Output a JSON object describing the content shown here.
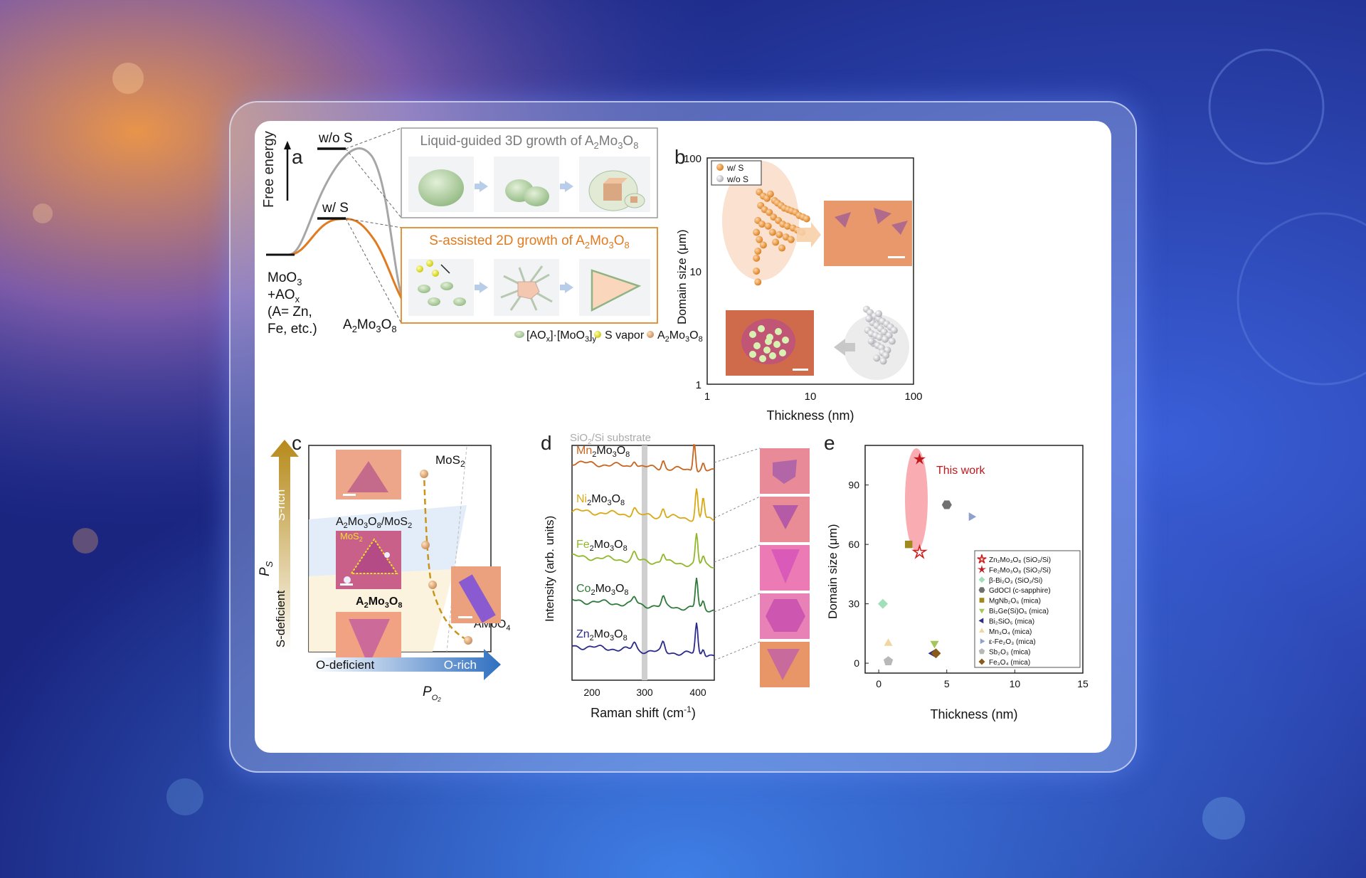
{
  "panels": {
    "a": {
      "letter": "a",
      "free_energy": "Free energy",
      "wo_s": "w/o S",
      "w_s": "w/ S",
      "reactant": {
        "line1": "MoO",
        "line1_sub": "3",
        "line2": "+AO",
        "line2_sub": "x",
        "line3": "(A= Zn,",
        "line4": "Fe, etc.)"
      },
      "product": {
        "a": "A",
        "a_sub": "2",
        "mo": "Mo",
        "mo_sub": "3",
        "o": "O",
        "o_sub": "8"
      },
      "box_top_title": "Liquid-guided 3D growth of A",
      "box_bottom_title": "S-assisted 2D growth of A",
      "legend_precursor": "[AO",
      "legend_precursor_sub1": "x",
      "legend_precursor_mid": "]·[MoO",
      "legend_precursor_sub2": "3",
      "legend_precursor_end": "]",
      "legend_precursor_sub3": "y",
      "legend_svapor": "S vapor",
      "legend_product": "A",
      "colors": {
        "orange": "#e07b20",
        "gray": "#9a9a9a",
        "green": "#a9c99a"
      }
    },
    "b": {
      "letter": "b",
      "xlabel": "Thickness (nm)",
      "ylabel": "Domain size (μm)",
      "xticks": [
        "1",
        "10",
        "100"
      ],
      "yticks": [
        "1",
        "10",
        "100"
      ],
      "legend": [
        "w/ S",
        "w/o S"
      ]
    },
    "c": {
      "letter": "c",
      "mos2": "MoS",
      "mos2_sub": "2",
      "mixed": "A",
      "mixed_rest": "Mo",
      "mos2_inset": "MoS",
      "a2mo3o8": "A",
      "amoo4": "AMoO",
      "amoo4_sub": "4",
      "s_rich": "S-rich",
      "s_deficient": "S-deficient",
      "ps": "P",
      "ps_sub": "S",
      "o_deficient": "O-deficient",
      "o_rich": "O-rich",
      "po2": "P",
      "po2_sub": "O"
    },
    "d": {
      "letter": "d",
      "substrate": "SiO",
      "substrate_rest": "/Si substrate",
      "xlabel": "Raman shift (cm",
      "xlabel_sup": "-1",
      "ylabel": "Intensity (arb. units)",
      "xticks": [
        "200",
        "300",
        "400"
      ],
      "spectra": [
        {
          "el": "Mn",
          "color": "#c8641e"
        },
        {
          "el": "Ni",
          "color": "#d9a915"
        },
        {
          "el": "Fe",
          "color": "#8fb82a"
        },
        {
          "el": "Co",
          "color": "#2f7a3a"
        },
        {
          "el": "Zn",
          "color": "#2a2a8a"
        }
      ]
    },
    "e": {
      "letter": "e",
      "this_work": "This work",
      "xlabel": "Thickness (nm)",
      "ylabel": "Domain size (μm)",
      "xticks": [
        "0",
        "5",
        "10",
        "15"
      ],
      "yticks": [
        "0",
        "30",
        "60",
        "90"
      ],
      "legend": [
        "Zn₂Mo₃O₈ (SiO₂/Si)",
        "Fe₂Mo₃O₈ (SiO₂/Si)",
        "β-Bi₂O₃ (SiO₂/Si)",
        "GdOCl (c-sapphire)",
        "MgNb₂O₆ (mica)",
        "Bi₂Ge(Si)O₅ (mica)",
        "Bi₂SiO₅ (mica)",
        "Mn₃O₄ (mica)",
        "ε-Fe₂O₃ (mica)",
        "Sb₂O₃ (mica)",
        "Fe₃O₄ (mica)"
      ]
    }
  },
  "chart_data": [
    {
      "type": "scatter",
      "panel": "b",
      "xlabel": "Thickness (nm)",
      "ylabel": "Domain size (μm)",
      "xlim": [
        1,
        100
      ],
      "ylim": [
        1,
        100
      ],
      "xscale": "log",
      "yscale": "log",
      "legend_position": "top-left",
      "series": [
        {
          "name": "w/ S",
          "color": "#e2821e",
          "x": [
            3.2,
            3.5,
            3.8,
            4.1,
            4.5,
            4.8,
            5.2,
            5.6,
            6.1,
            6.6,
            7.2,
            7.8,
            8.5,
            9.2,
            3.3,
            3.6,
            4.0,
            4.4,
            4.9,
            5.4,
            6.0,
            6.8,
            7.5,
            8.3,
            3.1,
            3.4,
            3.9,
            4.3,
            5.0,
            5.8,
            6.5,
            3.0,
            3.2,
            3.5,
            4.6,
            5.3,
            3.1,
            3.0,
            3.0,
            3.1
          ],
          "y": [
            50,
            46,
            44,
            48,
            42,
            40,
            38,
            36,
            35,
            34,
            33,
            31,
            30,
            29,
            38,
            35,
            33,
            30,
            28,
            26,
            25,
            24,
            23,
            22,
            28,
            26,
            25,
            22,
            21,
            20,
            19,
            22,
            19,
            17,
            18,
            16,
            15,
            13,
            10,
            8
          ]
        },
        {
          "name": "w/o S",
          "color": "#c0c0c8",
          "x": [
            35,
            38,
            42,
            46,
            50,
            55,
            60,
            65,
            40,
            44,
            48,
            52,
            58,
            36,
            39,
            43,
            47,
            53,
            62,
            41,
            45,
            49,
            56,
            50,
            54,
            44,
            39,
            37,
            46,
            51
          ],
          "y": [
            4.6,
            4.3,
            4.0,
            3.8,
            3.6,
            3.4,
            3.2,
            3.0,
            3.5,
            3.3,
            3.1,
            2.9,
            2.7,
            3.0,
            2.8,
            2.7,
            2.6,
            2.5,
            2.4,
            2.3,
            2.2,
            2.1,
            2.0,
            1.9,
            1.8,
            1.7,
            2.4,
            3.8,
            4.2,
            1.6
          ]
        }
      ]
    },
    {
      "type": "line",
      "panel": "d",
      "xlabel": "Raman shift (cm-1)",
      "ylabel": "Intensity (arb. units)",
      "xlim": [
        160,
        480
      ],
      "peaks_cm-1": [
        300,
        365,
        440,
        455
      ],
      "series_names": [
        "Mn2Mo3O8",
        "Ni2Mo3O8",
        "Fe2Mo3O8",
        "Co2Mo3O8",
        "Zn2Mo3O8"
      ]
    },
    {
      "type": "scatter",
      "panel": "e",
      "xlabel": "Thickness (nm)",
      "ylabel": "Domain size (μm)",
      "xlim": [
        -1,
        15
      ],
      "ylim": [
        -5,
        110
      ],
      "legend_position": "bottom-right",
      "points": [
        {
          "label": "Zn₂Mo₃O₈ (SiO₂/Si)",
          "x": 3.0,
          "y": 56,
          "marker": "star-open",
          "color": "#d11f1f"
        },
        {
          "label": "Fe₂Mo₃O₈ (SiO₂/Si)",
          "x": 3.0,
          "y": 103,
          "marker": "star",
          "color": "#c0181d"
        },
        {
          "label": "β-Bi₂O₃ (SiO₂/Si)",
          "x": 0.3,
          "y": 30,
          "marker": "diamond",
          "color": "#9fe0b8"
        },
        {
          "label": "GdOCl (c-sapphire)",
          "x": 5.0,
          "y": 80,
          "marker": "hexagon",
          "color": "#707070"
        },
        {
          "label": "MgNb₂O₆ (mica)",
          "x": 2.2,
          "y": 60,
          "marker": "square",
          "color": "#a08a1e"
        },
        {
          "label": "Bi₂Ge(Si)O₅ (mica)",
          "x": 4.1,
          "y": 10,
          "marker": "triangle-down",
          "color": "#a4c65a"
        },
        {
          "label": "Bi₂SiO₅ (mica)",
          "x": 4.0,
          "y": 5,
          "marker": "triangle-left",
          "color": "#2b2f7e"
        },
        {
          "label": "Mn₃O₄ (mica)",
          "x": 0.7,
          "y": 10,
          "marker": "triangle-up",
          "color": "#f0d7a0"
        },
        {
          "label": "ε-Fe₂O₃ (mica)",
          "x": 6.8,
          "y": 74,
          "marker": "triangle-right",
          "color": "#8fa0cf"
        },
        {
          "label": "Sb₂O₃ (mica)",
          "x": 0.7,
          "y": 1,
          "marker": "pentagon",
          "color": "#b8b8b8"
        },
        {
          "label": "Fe₃O₄ (mica)",
          "x": 4.2,
          "y": 5,
          "marker": "diamond",
          "color": "#8a5a1a"
        }
      ]
    }
  ]
}
